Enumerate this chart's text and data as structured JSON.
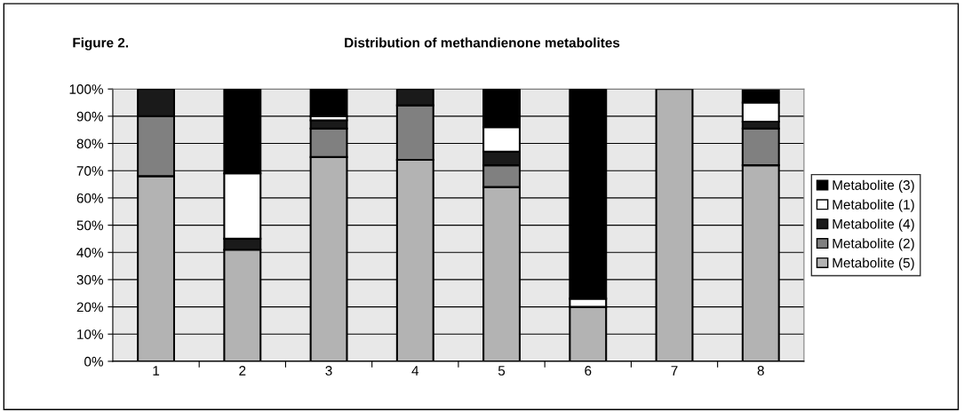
{
  "chart_data": {
    "type": "bar",
    "stacked": true,
    "title": "Distribution of methandienone metabolites",
    "annotations": [
      "Figure 2."
    ],
    "categories": [
      "1",
      "2",
      "3",
      "4",
      "5",
      "6",
      "7",
      "8"
    ],
    "series": [
      {
        "name": "Metabolite (5)",
        "color": "#b3b3b3",
        "values": [
          68,
          41,
          75,
          74,
          64,
          20,
          100,
          72
        ]
      },
      {
        "name": "Metabolite (2)",
        "color": "#808080",
        "values": [
          22,
          0,
          10.5,
          20,
          8,
          0,
          0,
          13.5
        ]
      },
      {
        "name": "Metabolite (4)",
        "color": "#1a1a1a",
        "values": [
          10,
          4,
          3,
          6,
          5,
          0,
          0,
          2.5
        ]
      },
      {
        "name": "Metabolite (1)",
        "color": "#ffffff",
        "values": [
          0,
          24,
          1.5,
          0,
          9,
          3,
          0,
          7
        ]
      },
      {
        "name": "Metabolite (3)",
        "color": "#000000",
        "values": [
          0,
          31,
          10,
          0,
          14,
          77,
          0,
          4.5
        ]
      }
    ],
    "ylim": [
      0,
      100
    ],
    "yticks": [
      {
        "value": 0,
        "label": "0%"
      },
      {
        "value": 10,
        "label": "10%"
      },
      {
        "value": 20,
        "label": "20%"
      },
      {
        "value": 30,
        "label": "30%"
      },
      {
        "value": 40,
        "label": "40%"
      },
      {
        "value": 50,
        "label": "50%"
      },
      {
        "value": 60,
        "label": "60%"
      },
      {
        "value": 70,
        "label": "70%"
      },
      {
        "value": 80,
        "label": "80%"
      },
      {
        "value": 90,
        "label": "90%"
      },
      {
        "value": 100,
        "label": "100%"
      }
    ],
    "grid": "y",
    "legend": "right"
  }
}
